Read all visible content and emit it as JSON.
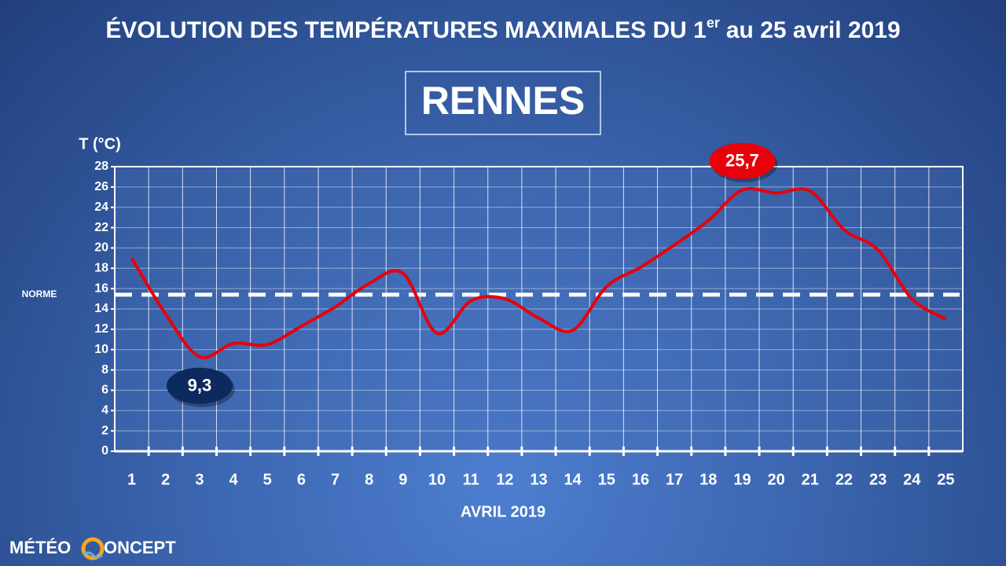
{
  "chart_data": {
    "type": "line",
    "title": [
      "ÉVOLUTION DES TEMPÉRATURES MAXIMALES DU 1",
      "er",
      "au 25 avril 2019"
    ],
    "subtitle": "RENNES",
    "y_label": "T (°C)",
    "x_label": "AVRIL 2019",
    "categories": [
      "1",
      "2",
      "3",
      "4",
      "5",
      "6",
      "7",
      "8",
      "9",
      "10",
      "11",
      "12",
      "13",
      "14",
      "15",
      "16",
      "17",
      "18",
      "19",
      "20",
      "21",
      "22",
      "23",
      "24",
      "25"
    ],
    "values": [
      19.0,
      13.5,
      9.3,
      10.6,
      10.5,
      12.3,
      14.2,
      16.5,
      17.5,
      11.6,
      14.8,
      15.0,
      13.1,
      11.9,
      16.2,
      18.1,
      20.3,
      22.7,
      25.7,
      25.4,
      25.6,
      21.8,
      19.8,
      15.0,
      13.0
    ],
    "color": "#e8000b",
    "ylim": [
      0,
      28
    ],
    "yticks": [
      0,
      2,
      4,
      6,
      8,
      10,
      12,
      14,
      16,
      18,
      20,
      22,
      24,
      26,
      28
    ],
    "grid": true,
    "norm": {
      "label": "NORME",
      "value": 15.4
    },
    "annotations": [
      {
        "index": 2,
        "value": 9.3,
        "label": "9,3",
        "color": "#0d2a5e",
        "position": "below"
      },
      {
        "index": 18,
        "value": 25.7,
        "label": "25,7",
        "color": "#e8000b",
        "position": "above"
      }
    ],
    "logo": [
      "MÉTÉO",
      "ONCEPT"
    ]
  }
}
